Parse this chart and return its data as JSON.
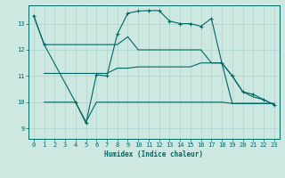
{
  "xlabel": "Humidex (Indice chaleur)",
  "background_color": "#cce8e0",
  "line_color": "#006666",
  "xlim": [
    -0.5,
    23.5
  ],
  "ylim": [
    8.6,
    13.7
  ],
  "yticks": [
    9,
    10,
    11,
    12,
    13
  ],
  "xticks": [
    0,
    1,
    2,
    3,
    4,
    5,
    6,
    7,
    8,
    9,
    10,
    11,
    12,
    13,
    14,
    15,
    16,
    17,
    18,
    19,
    20,
    21,
    22,
    23
  ],
  "grid_color": "#aad4cc",
  "series": [
    {
      "x": [
        0,
        1,
        4,
        5,
        6,
        7,
        8,
        9,
        10,
        11,
        12,
        13,
        14,
        15,
        16,
        17,
        18,
        19,
        20,
        21,
        22,
        23
      ],
      "y": [
        13.3,
        12.2,
        10.0,
        9.2,
        11.05,
        11.0,
        12.6,
        13.4,
        13.48,
        13.5,
        13.5,
        13.1,
        13.0,
        13.0,
        12.9,
        13.2,
        11.5,
        11.0,
        10.4,
        10.3,
        10.1,
        9.9
      ],
      "marker": "+"
    },
    {
      "x": [
        0,
        1,
        2,
        3,
        4,
        5,
        6,
        7,
        8,
        9,
        10,
        11,
        12,
        13,
        14,
        15,
        16,
        17,
        18,
        19,
        20,
        21,
        22,
        23
      ],
      "y": [
        13.3,
        12.2,
        12.2,
        12.2,
        12.2,
        12.2,
        12.2,
        12.2,
        12.2,
        12.5,
        12.0,
        12.0,
        12.0,
        12.0,
        12.0,
        12.0,
        12.0,
        11.5,
        11.5,
        11.0,
        10.4,
        10.2,
        10.1,
        9.9
      ],
      "marker": null
    },
    {
      "x": [
        1,
        2,
        3,
        4,
        5,
        6,
        7,
        8,
        9,
        10,
        11,
        12,
        13,
        14,
        15,
        16,
        17,
        18,
        19,
        20,
        21,
        22,
        23
      ],
      "y": [
        11.1,
        11.1,
        11.1,
        11.1,
        11.1,
        11.1,
        11.1,
        11.3,
        11.3,
        11.35,
        11.35,
        11.35,
        11.35,
        11.35,
        11.35,
        11.5,
        11.5,
        11.5,
        9.95,
        9.95,
        9.95,
        9.95,
        9.95
      ],
      "marker": null
    },
    {
      "x": [
        1,
        2,
        3,
        4,
        5,
        6,
        7,
        8,
        9,
        10,
        11,
        12,
        13,
        14,
        15,
        16,
        17,
        18,
        19,
        20,
        21,
        22,
        23
      ],
      "y": [
        10.0,
        10.0,
        10.0,
        10.0,
        9.25,
        10.0,
        10.0,
        10.0,
        10.0,
        10.0,
        10.0,
        10.0,
        10.0,
        10.0,
        10.0,
        10.0,
        10.0,
        10.0,
        9.95,
        9.95,
        9.95,
        9.95,
        9.95
      ],
      "marker": null
    }
  ]
}
